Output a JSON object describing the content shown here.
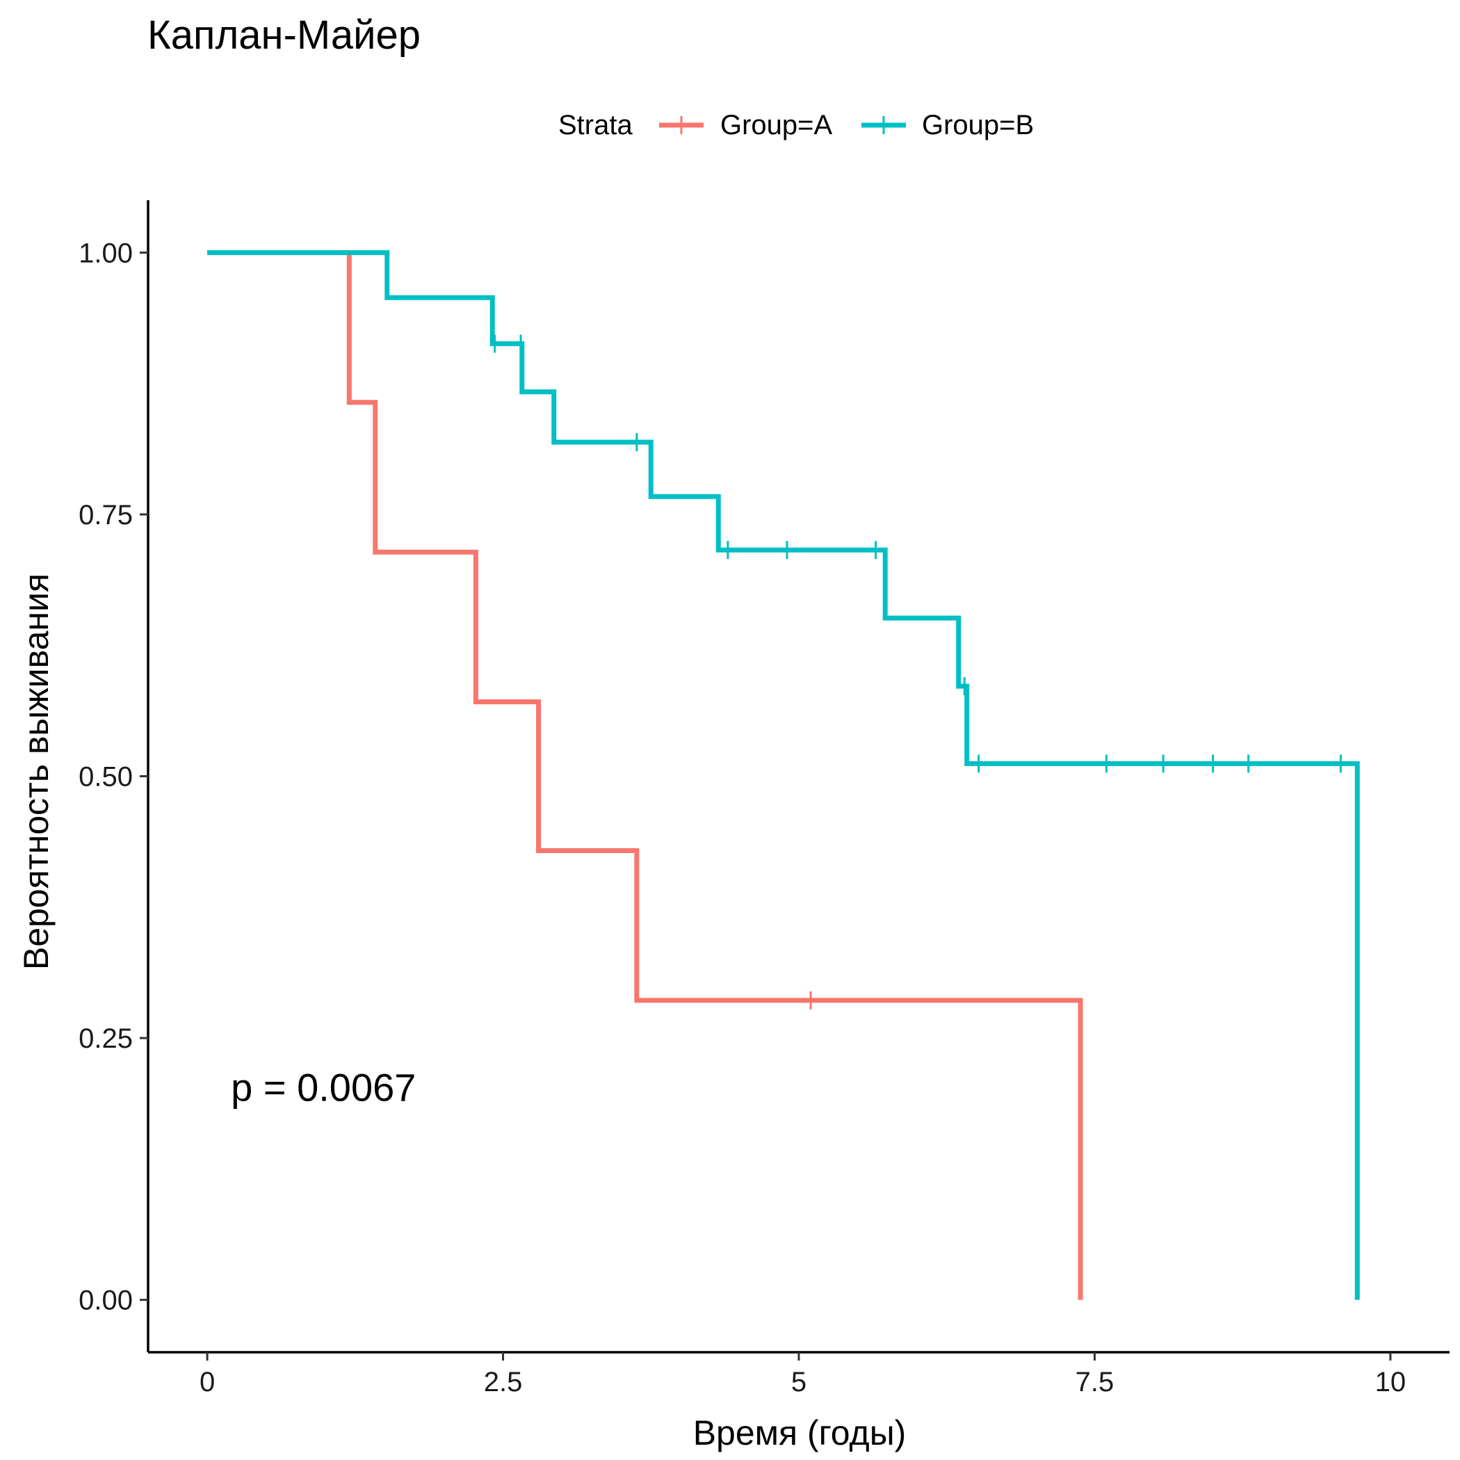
{
  "chart_data": {
    "type": "line",
    "title": "Каплан-Майер",
    "xlabel": "Время (годы)",
    "ylabel": "Вероятность выживания",
    "xlim": [
      -0.5,
      10.5
    ],
    "ylim": [
      -0.05,
      1.05
    ],
    "x_ticks": [
      0,
      2.5,
      5,
      7.5,
      10
    ],
    "x_tick_labels": [
      "0",
      "2.5",
      "5",
      "7.5",
      "10"
    ],
    "y_ticks": [
      0,
      0.25,
      0.5,
      0.75,
      1.0
    ],
    "y_tick_labels": [
      "0.00",
      "0.25",
      "0.50",
      "0.75",
      "1.00"
    ],
    "grid": false,
    "legend_position": "top",
    "legend_title": "Strata",
    "annotation": "p = 0.0067",
    "annotation_pos": {
      "x": 0.2,
      "y": 0.19
    },
    "series": [
      {
        "name": "Group=A",
        "color": "#F8766D",
        "steps": [
          [
            0,
            1.0
          ],
          [
            1.2,
            0.857
          ],
          [
            1.42,
            0.714
          ],
          [
            2.27,
            0.571
          ],
          [
            2.8,
            0.429
          ],
          [
            3.63,
            0.286
          ],
          [
            7.38,
            0.0
          ]
        ],
        "censor_times": [
          5.1
        ]
      },
      {
        "name": "Group=B",
        "color": "#00BFC4",
        "steps": [
          [
            0,
            1.0
          ],
          [
            1.52,
            0.957
          ],
          [
            2.41,
            0.913
          ],
          [
            2.66,
            0.867
          ],
          [
            2.93,
            0.819
          ],
          [
            3.75,
            0.767
          ],
          [
            4.32,
            0.716
          ],
          [
            5.73,
            0.651
          ],
          [
            6.35,
            0.586
          ],
          [
            6.42,
            0.512
          ],
          [
            9.72,
            0.0
          ]
        ],
        "censor_times": [
          2.43,
          2.65,
          3.63,
          4.4,
          4.9,
          5.65,
          6.4,
          6.52,
          7.6,
          8.08,
          8.5,
          8.8,
          9.58
        ]
      }
    ]
  }
}
